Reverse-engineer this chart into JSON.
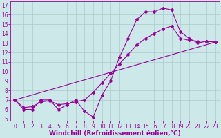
{
  "xlabel": "Windchill (Refroidissement éolien,°C)",
  "background_color": "#cce8e8",
  "line_color": "#990099",
  "grid_color": "#aacccc",
  "xlim": [
    -0.5,
    23.5
  ],
  "ylim": [
    4.8,
    17.4
  ],
  "yticks": [
    5,
    6,
    7,
    8,
    9,
    10,
    11,
    12,
    13,
    14,
    15,
    16,
    17
  ],
  "xticks": [
    0,
    1,
    2,
    3,
    4,
    5,
    6,
    7,
    8,
    9,
    10,
    11,
    12,
    13,
    14,
    15,
    16,
    17,
    18,
    19,
    20,
    21,
    22,
    23
  ],
  "series1_x": [
    0,
    1,
    2,
    3,
    4,
    5,
    6,
    7,
    8,
    9,
    10,
    11,
    12,
    13,
    14,
    15,
    16,
    17,
    18,
    19,
    20,
    21,
    22,
    23
  ],
  "series1_y": [
    7.0,
    6.0,
    6.0,
    7.0,
    7.0,
    6.0,
    6.5,
    7.0,
    5.8,
    5.2,
    7.5,
    9.0,
    11.5,
    13.5,
    15.5,
    16.3,
    16.3,
    16.7,
    16.5,
    14.2,
    13.5,
    13.0,
    13.2,
    13.1
  ],
  "series2_x": [
    0,
    1,
    2,
    3,
    4,
    5,
    6,
    7,
    8,
    9,
    10,
    11,
    12,
    13,
    14,
    15,
    16,
    17,
    18,
    19,
    20,
    21,
    22,
    23
  ],
  "series2_y": [
    7.0,
    6.2,
    6.3,
    6.8,
    6.9,
    6.5,
    6.6,
    6.8,
    7.0,
    7.8,
    8.8,
    9.8,
    10.8,
    11.8,
    12.8,
    13.5,
    14.0,
    14.5,
    14.8,
    13.5,
    13.3,
    13.2,
    13.2,
    13.1
  ],
  "series3_x": [
    0,
    23
  ],
  "series3_y": [
    7.0,
    13.1
  ],
  "marker": "D",
  "markersize": 2.0,
  "linewidth": 0.8,
  "tick_fontsize": 5.5,
  "xlabel_fontsize": 6.5
}
